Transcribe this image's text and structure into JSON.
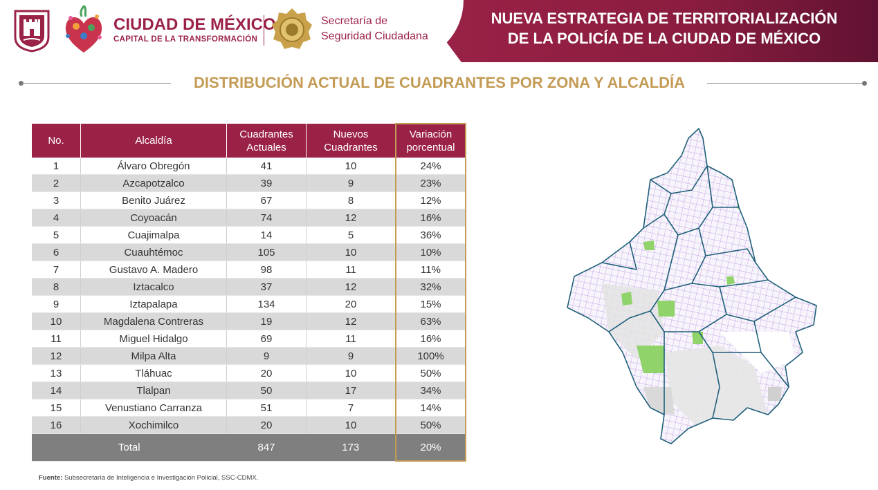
{
  "header": {
    "city_name": "CIUDAD DE MÉXICO",
    "city_tagline": "CAPITAL DE LA TRANSFORMACIÓN",
    "agency_line1": "Secretaría de",
    "agency_line2": "Seguridad Ciudadana",
    "title_line1": "NUEVA ESTRATEGIA DE TERRITORIALIZACIÓN",
    "title_line2": "DE LA POLICÍA DE LA CIUDAD DE MÉXICO"
  },
  "section_title": "DISTRIBUCIÓN ACTUAL DE CUADRANTES POR ZONA Y ALCALDÍA",
  "table": {
    "headers": {
      "no": "No.",
      "alcaldia": "Alcaldía",
      "actuales_1": "Cuadrantes",
      "actuales_2": "Actuales",
      "nuevos_1": "Nuevos",
      "nuevos_2": "Cuadrantes",
      "variacion_1": "Variación",
      "variacion_2": "porcentual"
    },
    "rows": [
      {
        "no": "1",
        "alcaldia": "Álvaro Obregón",
        "actuales": "41",
        "nuevos": "10",
        "variacion": "24%"
      },
      {
        "no": "2",
        "alcaldia": "Azcapotzalco",
        "actuales": "39",
        "nuevos": "9",
        "variacion": "23%"
      },
      {
        "no": "3",
        "alcaldia": "Benito Juárez",
        "actuales": "67",
        "nuevos": "8",
        "variacion": "12%"
      },
      {
        "no": "4",
        "alcaldia": "Coyoacán",
        "actuales": "74",
        "nuevos": "12",
        "variacion": "16%"
      },
      {
        "no": "5",
        "alcaldia": "Cuajimalpa",
        "actuales": "14",
        "nuevos": "5",
        "variacion": "36%"
      },
      {
        "no": "6",
        "alcaldia": "Cuauhtémoc",
        "actuales": "105",
        "nuevos": "10",
        "variacion": "10%"
      },
      {
        "no": "7",
        "alcaldia": "Gustavo A. Madero",
        "actuales": "98",
        "nuevos": "11",
        "variacion": "11%"
      },
      {
        "no": "8",
        "alcaldia": "Iztacalco",
        "actuales": "37",
        "nuevos": "12",
        "variacion": "32%"
      },
      {
        "no": "9",
        "alcaldia": "Iztapalapa",
        "actuales": "134",
        "nuevos": "20",
        "variacion": "15%"
      },
      {
        "no": "10",
        "alcaldia": "Magdalena Contreras",
        "actuales": "19",
        "nuevos": "12",
        "variacion": "63%"
      },
      {
        "no": "11",
        "alcaldia": "Miguel Hidalgo",
        "actuales": "69",
        "nuevos": "11",
        "variacion": "16%"
      },
      {
        "no": "12",
        "alcaldia": "Milpa Alta",
        "actuales": "9",
        "nuevos": "9",
        "variacion": "100%"
      },
      {
        "no": "13",
        "alcaldia": "Tláhuac",
        "actuales": "20",
        "nuevos": "10",
        "variacion": "50%"
      },
      {
        "no": "14",
        "alcaldia": "Tlalpan",
        "actuales": "50",
        "nuevos": "17",
        "variacion": "34%"
      },
      {
        "no": "15",
        "alcaldia": "Venustiano Carranza",
        "actuales": "51",
        "nuevos": "7",
        "variacion": "14%"
      },
      {
        "no": "16",
        "alcaldia": "Xochimilco",
        "actuales": "20",
        "nuevos": "10",
        "variacion": "50%"
      }
    ],
    "total": {
      "label": "Total",
      "actuales": "847",
      "nuevos": "173",
      "variacion": "20%"
    }
  },
  "source": {
    "label": "Fuente:",
    "text": "Subsecretaría de Inteligencia e Investigación Policial, SSC-CDMX."
  },
  "colors": {
    "brand": "#9b2247",
    "gold": "#c49b55",
    "total_row": "#7f7f7f",
    "alt_row": "#d9d9d9",
    "map_lines": "#b48be0",
    "map_border": "#1f5f7a",
    "map_green": "#8fd36a"
  }
}
